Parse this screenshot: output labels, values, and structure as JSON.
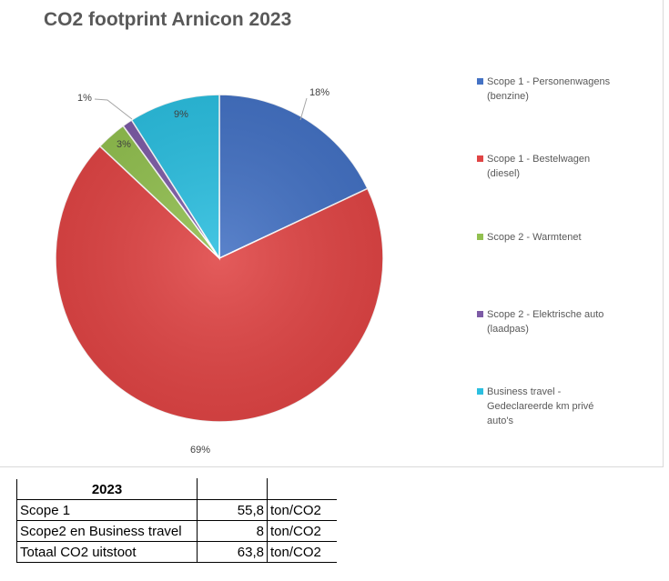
{
  "chart_data": {
    "type": "pie",
    "title": "CO2 footprint Arnicon 2023",
    "slices": [
      {
        "name": "Scope 1 - Personenwagens (benzine)",
        "value": 18,
        "label": "18%",
        "color": "#4472c4"
      },
      {
        "name": "Scope 1 - Bestelwagen (diesel)",
        "value": 69,
        "label": "69%",
        "color": "#e04545"
      },
      {
        "name": "Scope 2 - Warmtenet",
        "value": 3,
        "label": "3%",
        "color": "#92c050"
      },
      {
        "name": "Scope 2 - Elektrische auto (laadpas)",
        "value": 1,
        "label": "1%",
        "color": "#7d5ba6"
      },
      {
        "name": "Business travel - Gedeclareerde km privé auto's",
        "value": 9,
        "label": "9%",
        "color": "#2cbfe0"
      }
    ],
    "legend_position": "right"
  },
  "legend": [
    [
      "Scope 1 - Personenwagens",
      "(benzine)"
    ],
    [
      "Scope 1 - Bestelwagen",
      "(diesel)"
    ],
    [
      "Scope 2 - Warmtenet"
    ],
    [
      "Scope 2 - Elektrische auto",
      "(laadpas)"
    ],
    [
      "Business travel -",
      "Gedeclareerde km privé",
      "auto's"
    ]
  ],
  "table": {
    "header": "2023",
    "rows": [
      {
        "label": "Scope 1",
        "value": "55,8",
        "unit": "ton/CO2"
      },
      {
        "label": "Scope2 en Business travel",
        "value": "8",
        "unit": "ton/CO2"
      },
      {
        "label": "Totaal CO2 uitstoot",
        "value": "63,8",
        "unit": "ton/CO2"
      }
    ]
  }
}
